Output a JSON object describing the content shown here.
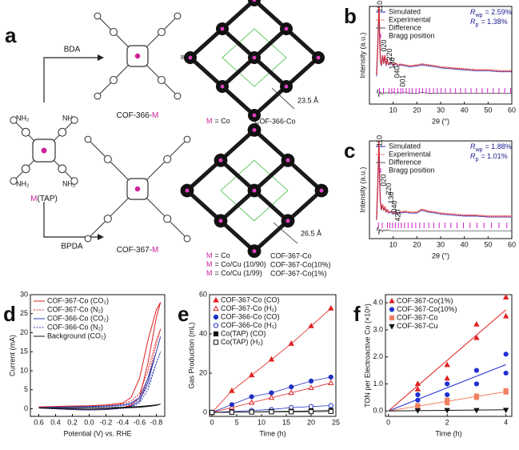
{
  "figure": {
    "panel_labels": [
      "a",
      "b",
      "c",
      "d",
      "e",
      "f"
    ],
    "scheme": {
      "linker_top": "BDA",
      "linker_bottom": "BPDA",
      "monomer_metal": "M",
      "monomer_name": "(TAP)",
      "amine_labels": [
        "NH₂",
        "NH₂",
        "NH₂",
        "NH₂"
      ],
      "product_top": {
        "text": "COF-366-",
        "metal": "M"
      },
      "product_bottom": {
        "text": "COF-367-",
        "metal": "M"
      },
      "equiv": [
        "≡",
        "≡"
      ],
      "distance_top": "23.5 Å",
      "distance_bottom": "26.5 Å",
      "legend_top": {
        "metal": "M",
        "rest": "= Co",
        "name": "COF-366-Co"
      },
      "legend_bottom": [
        {
          "metal": "M",
          "rest": "= Co",
          "name": "COF-367-Co"
        },
        {
          "metal": "M",
          "rest": "= Co/Cu (10/90)",
          "name": "COF-367-Co(10%)"
        },
        {
          "metal": "M",
          "rest": "= Co/Cu (1/99)",
          "name": "COF-367-Co(1%)"
        }
      ]
    }
  },
  "chart_data": [
    {
      "type": "xrd",
      "xlabel": "2θ (°)",
      "ylabel": "Intensity (a.u.)",
      "xlim": [
        0,
        60
      ],
      "xticks": [
        10,
        20,
        30,
        40,
        50,
        60
      ],
      "ylim": [
        0,
        100
      ],
      "x": [
        3,
        3.5,
        4,
        4.3,
        4.6,
        5,
        5.5,
        6,
        6.5,
        7,
        7.5,
        8,
        9,
        10,
        11,
        12,
        13,
        15,
        17,
        20,
        22,
        25,
        28,
        30,
        35,
        40,
        45,
        50,
        55,
        60
      ],
      "series": [
        {
          "name": "Simulated",
          "color": "#3030c0",
          "kind": "line",
          "values": [
            28,
            62,
            99,
            68,
            44,
            39,
            49,
            41,
            49,
            39,
            45,
            40,
            42,
            39,
            41,
            39,
            40,
            39,
            38,
            39,
            40,
            39,
            38,
            37,
            36,
            35,
            34,
            34,
            33,
            33
          ]
        },
        {
          "name": "Experimental",
          "color": "#e02020",
          "kind": "dots",
          "values": [
            30,
            60,
            100,
            70,
            45,
            40,
            50,
            42,
            50,
            40,
            46,
            41,
            43,
            40,
            42,
            40,
            41,
            40,
            39,
            40,
            41,
            40,
            39,
            38,
            37,
            36,
            35,
            35,
            34,
            34
          ]
        },
        {
          "name": "Difference",
          "color": "#555555",
          "kind": "line",
          "values": [
            11,
            15,
            7,
            13,
            11,
            12,
            10,
            12,
            11,
            12,
            11,
            12,
            11,
            12,
            11,
            12,
            11,
            12,
            11,
            11,
            12,
            11,
            11,
            11,
            11,
            11,
            11,
            11,
            11,
            11
          ]
        },
        {
          "name": "Bragg position",
          "color": "#d020d0",
          "kind": "ticks",
          "x": [
            4.2,
            5.9,
            8.3,
            9.4,
            10.5,
            11.9,
            13.2,
            14.1,
            15.5,
            16.8,
            18,
            19.6,
            21,
            22.4,
            23.9,
            25.3,
            27,
            28.6,
            30.2,
            32,
            34.1,
            36.3,
            38.4,
            40.5,
            42.8,
            45.1,
            47.5,
            49.8,
            52.2,
            54.6,
            57,
            59.5
          ]
        }
      ],
      "annotations": [
        {
          "text": "110",
          "x": 4
        },
        {
          "text": "020",
          "x": 5.6
        },
        {
          "text": "220",
          "x": 8
        },
        {
          "text": "130",
          "x": 9.2
        },
        {
          "text": "040",
          "x": 11.2
        },
        {
          "text": "001",
          "x": 13.5
        }
      ],
      "stats": [
        {
          "symbol": "R",
          "sub": "wp",
          "text": "= 2.59%"
        },
        {
          "symbol": "R",
          "sub": "p",
          "text": "= 1.38%"
        }
      ]
    },
    {
      "type": "xrd",
      "xlabel": "2θ (°)",
      "ylabel": "Intensity (a.u.)",
      "xlim": [
        0,
        60
      ],
      "xticks": [
        10,
        20,
        30,
        40,
        50,
        60
      ],
      "ylim": [
        0,
        100
      ],
      "x": [
        3,
        3.5,
        4,
        4.3,
        4.6,
        5,
        5.5,
        6,
        6.5,
        7,
        7.5,
        8,
        9,
        10,
        11,
        12,
        13,
        15,
        17,
        20,
        22,
        25,
        28,
        30,
        35,
        40,
        45,
        50,
        55,
        60
      ],
      "series": [
        {
          "name": "Simulated",
          "color": "#3030c0",
          "kind": "line",
          "values": [
            19,
            57,
            99,
            58,
            37,
            29,
            34,
            29,
            31,
            27,
            29,
            26,
            27,
            25,
            26,
            25,
            26,
            27,
            26,
            26,
            29,
            27,
            26,
            25,
            24,
            23,
            23,
            22,
            22,
            22
          ]
        },
        {
          "name": "Experimental",
          "color": "#e02020",
          "kind": "dots",
          "values": [
            20,
            55,
            100,
            60,
            38,
            30,
            35,
            30,
            32,
            28,
            30,
            27,
            28,
            26,
            27,
            26,
            27,
            28,
            27,
            27,
            30,
            28,
            27,
            26,
            25,
            24,
            24,
            23,
            23,
            23
          ]
        },
        {
          "name": "Difference",
          "color": "#555555",
          "kind": "line",
          "values": [
            8,
            12,
            4,
            10,
            8,
            9,
            7,
            9,
            8,
            9,
            8,
            9,
            8,
            8,
            8,
            8,
            8,
            8,
            8,
            8,
            8,
            8,
            8,
            8,
            8,
            8,
            8,
            8,
            8,
            8
          ]
        },
        {
          "name": "Bragg position",
          "color": "#d020d0",
          "kind": "ticks",
          "x": [
            3.8,
            5.4,
            7.6,
            8.6,
            9.7,
            10.9,
            12.2,
            13.4,
            14.8,
            16.3,
            17.9,
            19.5,
            21.2,
            23,
            25,
            27.1,
            29.4,
            31.8,
            34.3,
            36.9,
            39.6,
            42.4,
            45.3,
            48.3,
            51.4,
            54.6,
            57.9
          ]
        }
      ],
      "annotations": [
        {
          "text": "110",
          "x": 3.8
        },
        {
          "text": "020",
          "x": 5.4
        },
        {
          "text": "220",
          "x": 7.6
        },
        {
          "text": "130",
          "x": 8.7
        },
        {
          "text": "040",
          "x": 10
        },
        {
          "text": "420",
          "x": 11.5
        }
      ],
      "stats": [
        {
          "symbol": "R",
          "sub": "wp",
          "text": "= 1.88%"
        },
        {
          "symbol": "R",
          "sub": "p",
          "text": "= 1.01%"
        }
      ]
    },
    {
      "type": "line",
      "xlabel": "Potential (V) vs. RHE",
      "ylabel": "Current (mA)",
      "xlim": [
        0.7,
        -0.9
      ],
      "xticks": [
        0.6,
        0.4,
        0.2,
        {
          "value": 0,
          "label": "0.0"
        },
        -0.2,
        -0.4,
        -0.6,
        -0.8
      ],
      "ylim": [
        -2,
        30
      ],
      "yticks": [
        0,
        5,
        10,
        15,
        20,
        25,
        30
      ],
      "x": [
        0.6,
        0.4,
        0.2,
        0,
        -0.2,
        -0.4,
        -0.5,
        -0.6,
        -0.7,
        -0.8,
        -0.85,
        -0.8,
        -0.7,
        -0.6,
        -0.5,
        -0.4,
        -0.2,
        0,
        0.2,
        0.4,
        0.6
      ],
      "series": [
        {
          "name": "COF-367-Co (CO₂)",
          "color": "#e02020",
          "style": "solid",
          "values": [
            0.5,
            0.6,
            0.7,
            0.8,
            1,
            1.5,
            3,
            8,
            18,
            26,
            28,
            24,
            12,
            3,
            1,
            0.3,
            -0.2,
            -0.3,
            -0.2,
            0,
            0.3
          ]
        },
        {
          "name": "COF-367-Co (N₂)",
          "color": "#e02020",
          "style": "dotted",
          "values": [
            0.4,
            0.5,
            0.6,
            0.7,
            0.9,
            1.3,
            2,
            4,
            10,
            18,
            21,
            17,
            8,
            2,
            0.8,
            0.2,
            -0.2,
            -0.3,
            -0.2,
            0,
            0.2
          ]
        },
        {
          "name": "COF-366-Co (CO₂)",
          "color": "#3040b0",
          "style": "solid",
          "values": [
            0.3,
            0.4,
            0.5,
            0.6,
            0.7,
            1,
            1.5,
            3,
            8,
            15,
            19,
            15,
            7,
            2,
            0.7,
            0.2,
            -0.2,
            -0.3,
            -0.2,
            0,
            0.2
          ]
        },
        {
          "name": "COF-366-Co (N₂)",
          "color": "#3040b0",
          "style": "dotted",
          "values": [
            0.3,
            0.4,
            0.5,
            0.5,
            0.6,
            0.8,
            1.2,
            2.5,
            6,
            12,
            15,
            12,
            5,
            1.5,
            0.5,
            0.1,
            -0.2,
            -0.3,
            -0.2,
            0,
            0.2
          ]
        },
        {
          "name": "Background (CO₂)",
          "color": "#111111",
          "style": "solid",
          "values": [
            0.2,
            0.2,
            0.3,
            0.3,
            0.3,
            0.4,
            0.5,
            0.6,
            0.8,
            1,
            1.2,
            0.9,
            0.6,
            0.4,
            0.3,
            0.2,
            0,
            -0.1,
            0,
            0.1,
            0.2
          ]
        }
      ]
    },
    {
      "type": "line-markers",
      "xlabel": "Time (h)",
      "ylabel": "Gas Production (mL)",
      "xlim": [
        -0.5,
        25
      ],
      "xticks": [
        0,
        5,
        10,
        15,
        20,
        25
      ],
      "ylim": [
        -2,
        60
      ],
      "yticks": [
        0,
        20,
        40,
        60
      ],
      "x": [
        0,
        4,
        8,
        12,
        16,
        20,
        24
      ],
      "series": [
        {
          "name": "COF-367-Co (CO)",
          "color": "#e02020",
          "marker": "triangle",
          "filled": true,
          "values": [
            0,
            11,
            19,
            27,
            35,
            44,
            53
          ]
        },
        {
          "name": "COF-367-Co (H₂)",
          "color": "#e02020",
          "marker": "triangle",
          "filled": false,
          "values": [
            0,
            2.5,
            5,
            7.5,
            10,
            12.5,
            15
          ]
        },
        {
          "name": "COF-366-Co (CO)",
          "color": "#2030c0",
          "marker": "circle",
          "filled": true,
          "values": [
            0,
            4,
            8,
            10,
            13,
            16,
            18
          ]
        },
        {
          "name": "COF-366-Co (H₂)",
          "color": "#2030c0",
          "marker": "circle",
          "filled": false,
          "values": [
            0,
            0.5,
            1,
            1.5,
            2.5,
            3,
            3.5
          ]
        },
        {
          "name": "Co(TAP) (CO)",
          "color": "#111111",
          "marker": "square",
          "filled": true,
          "values": [
            0,
            0.2,
            0.3,
            0.5,
            0.6,
            0.8,
            1
          ]
        },
        {
          "name": "Co(TAP) (H₂)",
          "color": "#111111",
          "marker": "square",
          "filled": false,
          "values": [
            0,
            0.1,
            0.2,
            0.3,
            0.3,
            0.4,
            0.5
          ]
        }
      ]
    },
    {
      "type": "scatter",
      "xlabel": "Time (h)",
      "ylabel": "TON per Electroactive Co (×10⁶)",
      "xlim": [
        -0.1,
        4.2
      ],
      "xticks": [
        0,
        2,
        4
      ],
      "ylim": [
        -0.2,
        4.3
      ],
      "yticks": [
        {
          "value": 0,
          "label": "0.0"
        },
        {
          "value": 1,
          "label": "1.0"
        },
        {
          "value": 2,
          "label": "2.0"
        },
        {
          "value": 3,
          "label": "3.0"
        },
        {
          "value": 4,
          "label": "4.0"
        }
      ],
      "series": [
        {
          "name": "COF-367-Co(1%)",
          "color": "#e02020",
          "marker": "triangle",
          "x": [
            1,
            1,
            2,
            2,
            3,
            3,
            4,
            4
          ],
          "values": [
            1,
            0.8,
            1.7,
            1.2,
            3.2,
            2.7,
            4.2,
            3.5
          ]
        },
        {
          "name": "COF-367-Co(10%)",
          "color": "#2030d0",
          "marker": "circle",
          "x": [
            1,
            1,
            2,
            2,
            3,
            3,
            4,
            4
          ],
          "values": [
            0.6,
            0.4,
            1,
            0.6,
            1.5,
            1,
            2.1,
            1.4
          ]
        },
        {
          "name": "COF-367-Co",
          "color": "#f08060",
          "marker": "square",
          "x": [
            1,
            1,
            2,
            2,
            3,
            3,
            4,
            4
          ],
          "values": [
            0.15,
            0.2,
            0.3,
            0.4,
            0.55,
            0.5,
            0.75,
            0.7
          ]
        },
        {
          "name": "COF-367-Cu",
          "color": "#111111",
          "marker": "triangle-down",
          "x": [
            1,
            2,
            3,
            4
          ],
          "values": [
            0.02,
            0.03,
            0.03,
            0.04
          ]
        }
      ]
    }
  ]
}
